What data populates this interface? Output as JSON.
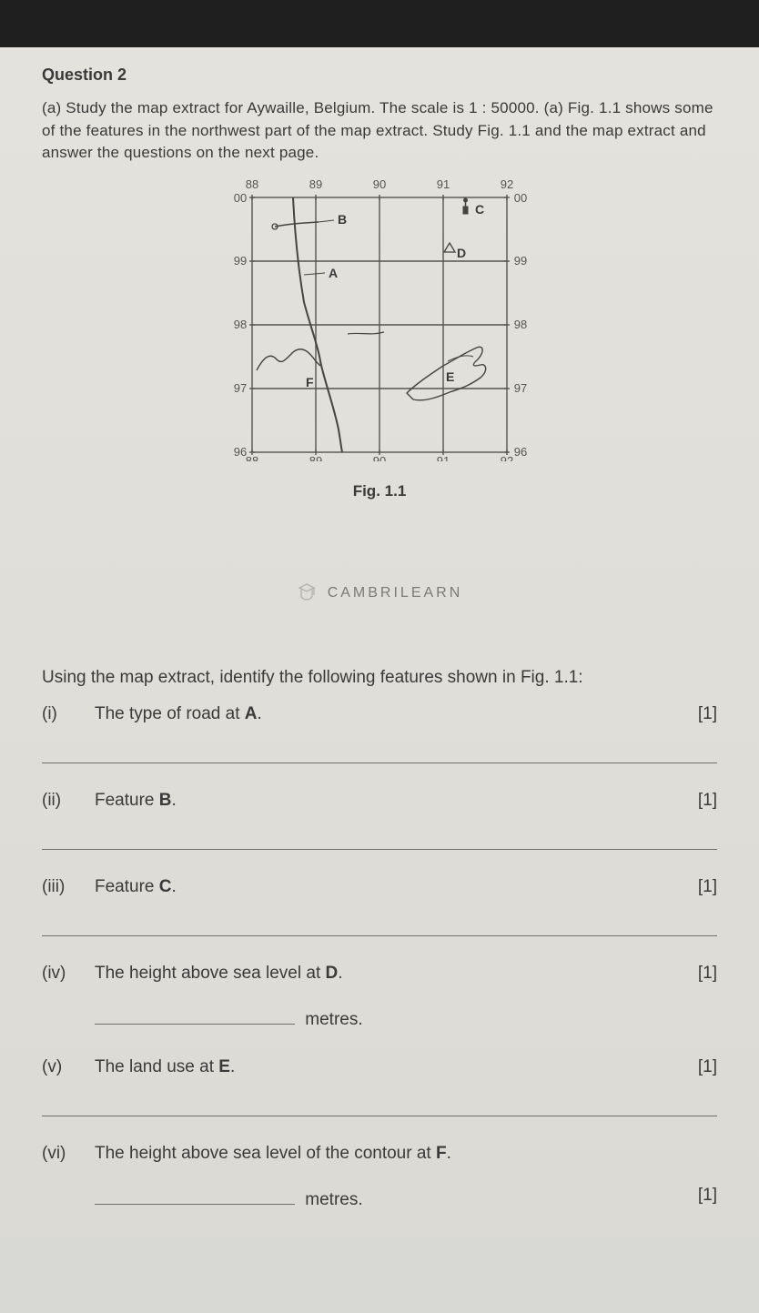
{
  "question_title": "Question 2",
  "intro": "(a) Study the map extract for Aywaille, Belgium. The scale is 1 : 50000. (a) Fig. 1.1 shows some of the features in the northwest part of the map extract. Study Fig. 1.1 and the map extract and answer the questions on the next page.",
  "figure": {
    "caption": "Fig. 1.1",
    "grid": {
      "x_labels": [
        "88",
        "89",
        "90",
        "91",
        "92"
      ],
      "y_labels": [
        "00",
        "99",
        "98",
        "97",
        "96"
      ],
      "x_min": 88,
      "x_max": 92,
      "y_min": 96,
      "y_max": 0,
      "stroke": "#555551",
      "fill": "#e4e2dc",
      "label_color": "#555551",
      "label_fontsize": 13
    },
    "letters": {
      "A": {
        "gx": 89.2,
        "gy": 98.9
      },
      "B": {
        "gx": 89.25,
        "gy": 99.6
      },
      "C": {
        "gx": 91.55,
        "gy": 99.85
      },
      "D": {
        "gx": 91.18,
        "gy": 99.25
      },
      "E": {
        "gx": 91.15,
        "gy": 97.2
      },
      "F": {
        "gx": 88.9,
        "gy": 97.05
      }
    },
    "plot": {
      "stroke": "#444440",
      "feature_fill": "#e4e2dc"
    }
  },
  "brand": "CAMBRILEARN",
  "lead": "Using the map extract, identify the following features shown in Fig. 1.1:",
  "items": [
    {
      "num": "(i)",
      "text_pre": "The type of road at ",
      "bold": "A",
      "text_post": ".",
      "marks": "[1]",
      "rule": true
    },
    {
      "num": "(ii)",
      "text_pre": "Feature ",
      "bold": "B",
      "text_post": ".",
      "marks": "[1]",
      "rule": true
    },
    {
      "num": "(iii)",
      "text_pre": "Feature ",
      "bold": "C",
      "text_post": ".",
      "marks": "[1]",
      "rule": true
    },
    {
      "num": "(iv)",
      "text_pre": "The height above sea level at ",
      "bold": "D",
      "text_post": ".",
      "marks": "[1]",
      "blank_unit": "metres.",
      "rule": false
    },
    {
      "num": "(v)",
      "text_pre": "The land use at ",
      "bold": "E",
      "text_post": ".",
      "marks": "[1]",
      "rule": true
    },
    {
      "num": "(vi)",
      "text_pre": "The height above sea level of the contour at ",
      "bold": "F",
      "text_post": ".",
      "marks": "[1]",
      "blank_unit": "metres.",
      "rule": false,
      "marks_below": true
    }
  ],
  "colors": {
    "text": "#3a3a38",
    "rule": "#6f6f6b",
    "bg": "#e0ded8"
  }
}
